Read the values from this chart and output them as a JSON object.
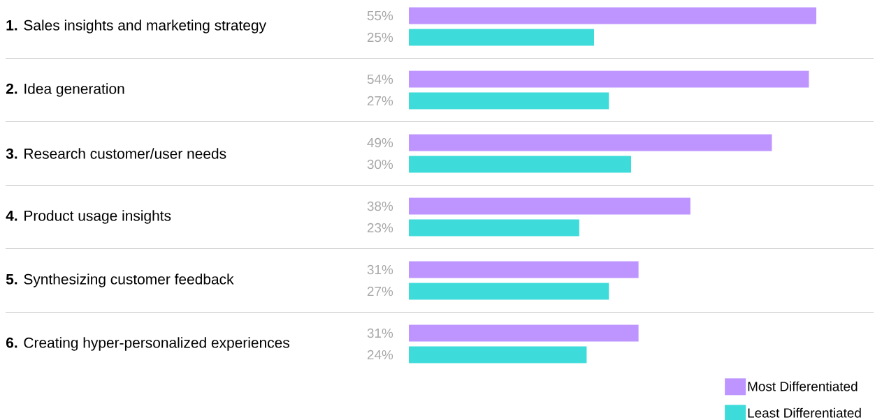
{
  "chart_data": {
    "type": "bar",
    "orientation": "horizontal",
    "categories": [
      "**1.** Sales insights and marketing strategy",
      "**2.** Idea generation",
      "**3.** Research customer/user needs",
      "**4.** Product usage insights",
      "**5.** Synthesizing customer feedback",
      "**6.** Creating hyper-personalized experiences"
    ],
    "series": [
      {
        "name": "Most Differentiated",
        "color": "#be95ff",
        "values": [
          55,
          54,
          49,
          38,
          31,
          31
        ],
        "value_labels": [
          "55%",
          "54%",
          "49%",
          "38%",
          "31%",
          "31%"
        ]
      },
      {
        "name": "Least Differentiated",
        "color": "#3ddbd9",
        "values": [
          25,
          27,
          30,
          23,
          27,
          24
        ],
        "value_labels": [
          "25%",
          "27%",
          "30%",
          "23%",
          "27%",
          "24%"
        ]
      }
    ],
    "grid": true,
    "legend": "bottom right"
  }
}
